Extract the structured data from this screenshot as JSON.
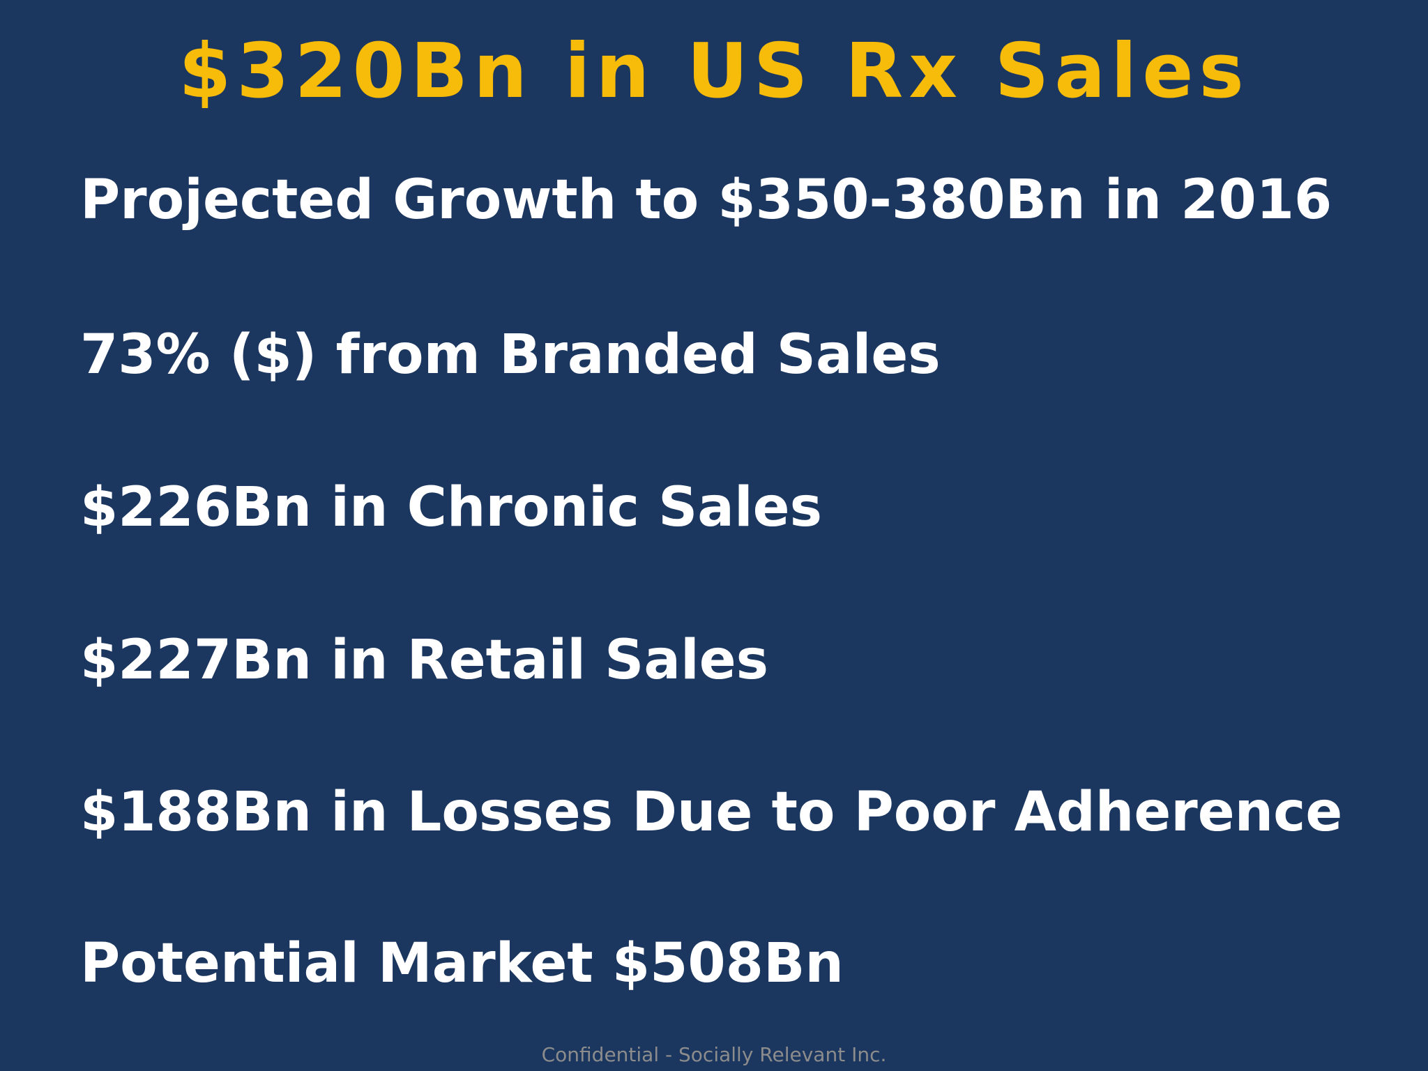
{
  "title": "$320Bn in US Rx Sales",
  "items": [
    "Projected Growth to $350-380Bn in 2016",
    "73% ($) from Branded Sales",
    "$226Bn in Chronic Sales",
    "$227Bn in Retail Sales",
    "$188Bn in Losses Due to Poor Adherence",
    "Potential Market $508Bn"
  ],
  "footer": "Confidential - Socially Relevant Inc."
}
